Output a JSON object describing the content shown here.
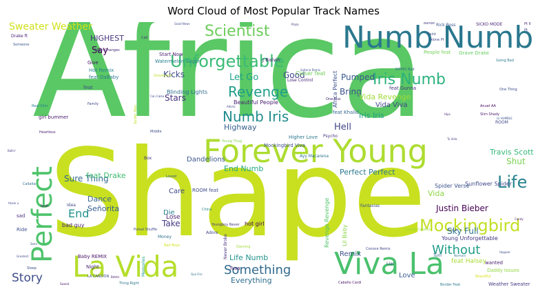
{
  "chart_data": {
    "type": "word_cloud",
    "title": "Word Cloud of Most Popular Track Names",
    "words": [
      {
        "text": "Africa",
        "size": 200,
        "color": "#5ac864"
      },
      {
        "text": "Shape",
        "size": 175,
        "color": "#c8e020"
      },
      {
        "text": "Forever Young",
        "size": 46,
        "color": "#addc30"
      },
      {
        "text": "Numb Numb",
        "size": 44,
        "color": "#2a788e"
      },
      {
        "text": "Viva La",
        "size": 44,
        "color": "#4ac16d"
      },
      {
        "text": "La Vida",
        "size": 42,
        "color": "#b5de2b"
      },
      {
        "text": "Perfect",
        "size": 40,
        "color": "#4ec36b"
      },
      {
        "text": "Unforgettable",
        "size": 24,
        "color": "#3bbb75"
      },
      {
        "text": "Mockingbird",
        "size": 24,
        "color": "#c2df23"
      },
      {
        "text": "Scientist",
        "size": 22,
        "color": "#6ccd5a"
      },
      {
        "text": "Iris Numb",
        "size": 22,
        "color": "#2db27d"
      },
      {
        "text": "Life",
        "size": 24,
        "color": "#26828e"
      },
      {
        "text": "Numb Iris",
        "size": 20,
        "color": "#228c8d"
      },
      {
        "text": "Revenge",
        "size": 20,
        "color": "#1f9e89"
      },
      {
        "text": "Something",
        "size": 18,
        "color": "#30698e"
      },
      {
        "text": "Without",
        "size": 18,
        "color": "#1f9e89"
      },
      {
        "text": "Story",
        "size": 17,
        "color": "#3e4c8a"
      },
      {
        "text": "End",
        "size": 16,
        "color": "#21918c"
      },
      {
        "text": "Sweater Weather",
        "size": 14,
        "color": "#d0e11c"
      },
      {
        "text": "Sure Thing",
        "size": 12,
        "color": "#31688e"
      },
      {
        "text": "Hell",
        "size": 13,
        "color": "#414487"
      },
      {
        "text": "Let Go",
        "size": 13,
        "color": "#1fa187"
      },
      {
        "text": "Good",
        "size": 12,
        "color": "#404688"
      },
      {
        "text": "Pumped",
        "size": 12,
        "color": "#38588c"
      },
      {
        "text": "Bring",
        "size": 12,
        "color": "#3b528b"
      },
      {
        "text": "Justin Bieber",
        "size": 12,
        "color": "#440154"
      },
      {
        "text": "Sky Full",
        "size": 12,
        "color": "#2c728e"
      },
      {
        "text": "Shut",
        "size": 12,
        "color": "#7ad151"
      },
      {
        "text": "Travis Scott",
        "size": 11,
        "color": "#35b779"
      },
      {
        "text": "Take",
        "size": 12,
        "color": "#443983"
      },
      {
        "text": "End Numb",
        "size": 11,
        "color": "#22a884"
      },
      {
        "text": "Perfect Perfect",
        "size": 11,
        "color": "#2a788e"
      },
      {
        "text": "Stars",
        "size": 12,
        "color": "#472d7b"
      },
      {
        "text": "Kicks",
        "size": 12,
        "color": "#3e4989"
      },
      {
        "text": "Say",
        "size": 13,
        "color": "#440154"
      },
      {
        "text": "HIGHEST",
        "size": 11,
        "color": "#46337e"
      },
      {
        "text": "Iris Iris",
        "size": 11,
        "color": "#1f9e89"
      },
      {
        "text": "Vida Revenge",
        "size": 11,
        "color": "#a0da39"
      },
      {
        "text": "Vida Viva",
        "size": 10,
        "color": "#404688"
      },
      {
        "text": "Dance",
        "size": 11,
        "color": "#33638d"
      },
      {
        "text": "Señorita",
        "size": 11,
        "color": "#365c8d"
      },
      {
        "text": "feat Drake",
        "size": 11,
        "color": "#3fbc73"
      },
      {
        "text": "Dandelions",
        "size": 10,
        "color": "#39568c"
      },
      {
        "text": "Highway",
        "size": 11,
        "color": "#355f8d"
      },
      {
        "text": "Everything",
        "size": 11,
        "color": "#2e6e8e"
      },
      {
        "text": "Life Numb",
        "size": 11,
        "color": "#20928c"
      },
      {
        "text": "Remix",
        "size": 10,
        "color": "#3b528b"
      },
      {
        "text": "Care",
        "size": 10,
        "color": "#3f4788"
      },
      {
        "text": "Die",
        "size": 10,
        "color": "#287d8e"
      },
      {
        "text": "Love",
        "size": 10,
        "color": "#375b8d"
      },
      {
        "text": "Lose",
        "size": 9,
        "color": "#481769"
      },
      {
        "text": "Beautiful People",
        "size": 8,
        "color": "#482071"
      },
      {
        "text": "Blinding Lights",
        "size": 8,
        "color": "#2f6c8e"
      },
      {
        "text": "Closer feat",
        "size": 8,
        "color": "#6ece58"
      },
      {
        "text": "feat Halsey",
        "size": 9,
        "color": "#a8db34"
      },
      {
        "text": "Spider Verse",
        "size": 8,
        "color": "#3b528b"
      },
      {
        "text": "Sunflower Spider",
        "size": 8,
        "color": "#3e4989"
      },
      {
        "text": "Young Unforgettable",
        "size": 8,
        "color": "#453781"
      },
      {
        "text": "Mockingbird Viva",
        "size": 7,
        "color": "#3d4e8a"
      },
      {
        "text": "Higher Love",
        "size": 7,
        "color": "#2a788e"
      },
      {
        "text": "Ayy Macarena",
        "size": 6,
        "color": "#2c728e"
      },
      {
        "text": "feat Khalid",
        "size": 7,
        "color": "#31688e"
      },
      {
        "text": "feat Gunna",
        "size": 7,
        "color": "#46327e"
      },
      {
        "text": "Start Now",
        "size": 7,
        "color": "#481c6e"
      },
      {
        "text": "Hot Remix",
        "size": 7,
        "color": "#25848e"
      },
      {
        "text": "feat DaBaby",
        "size": 7,
        "color": "#2a788e"
      },
      {
        "text": "Watermelon Sugar",
        "size": 7,
        "color": "#277f8e"
      },
      {
        "text": "Grave Drake",
        "size": 7,
        "color": "#63cb5f"
      },
      {
        "text": "People feat",
        "size": 7,
        "color": "#73d056"
      },
      {
        "text": "Daddy Issues",
        "size": 7,
        "color": "#93d741"
      },
      {
        "text": "Weather Sweater",
        "size": 7,
        "color": "#443a83"
      },
      {
        "text": "bad guy",
        "size": 8,
        "color": "#482576"
      },
      {
        "text": "hot girl",
        "size": 8,
        "color": "#440154"
      },
      {
        "text": "ROOM feat",
        "size": 7,
        "color": "#3e4a89"
      },
      {
        "text": "Lil Baby",
        "size": 8,
        "color": "#8bd646"
      },
      {
        "text": "Revenge Revenge",
        "size": 8,
        "color": "#52c569"
      },
      {
        "text": "Africa Perfect",
        "size": 8,
        "color": "#3b528b"
      },
      {
        "text": "Baby REMIX",
        "size": 7,
        "color": "#471063"
      },
      {
        "text": "Night",
        "size": 7,
        "color": "#482878"
      },
      {
        "text": "Tusa",
        "size": 7,
        "color": "#481a6c"
      },
      {
        "text": "girl bummer",
        "size": 7,
        "color": "#481b6d"
      },
      {
        "text": "Give",
        "size": 7,
        "color": "#471164"
      },
      {
        "text": "Ride",
        "size": 7,
        "color": "#3d4d8a"
      },
      {
        "text": "Drake ft",
        "size": 6,
        "color": "#482173"
      },
      {
        "text": "feat",
        "size": 7,
        "color": "#3f4889"
      },
      {
        "text": "J Balvin",
        "size": 7,
        "color": "#482374"
      },
      {
        "text": "Rick Ross",
        "size": 6,
        "color": "#3a548c"
      },
      {
        "text": "SICKO MODE",
        "size": 6,
        "color": "#482475"
      },
      {
        "text": "Money",
        "size": 6,
        "color": "#2d718e"
      },
      {
        "text": "Idea",
        "size": 6,
        "color": "#3e4a89"
      },
      {
        "text": "sad",
        "size": 7,
        "color": "#46307e"
      },
      {
        "text": "Liar",
        "size": 6,
        "color": "#3c508b"
      },
      {
        "text": "Turn",
        "size": 6,
        "color": "#355e8d"
      },
      {
        "text": "Psycho",
        "size": 6,
        "color": "#46337f"
      },
      {
        "text": "Adore",
        "size": 6,
        "color": "#3f4889"
      },
      {
        "text": "Fantasias",
        "size": 6,
        "color": "#3b518b"
      },
      {
        "text": "Vida",
        "size": 11,
        "color": "#8fd744"
      },
      {
        "text": "Lose Control",
        "size": 6,
        "color": "#482979"
      },
      {
        "text": "ROOM",
        "size": 6,
        "color": "#3f4788"
      },
      {
        "text": "Anuel AA",
        "size": 5,
        "color": "#46085c"
      },
      {
        "text": "Slim Shady",
        "size": 5,
        "color": "#481467"
      },
      {
        "text": "One Kiss",
        "size": 5,
        "color": "#482575"
      },
      {
        "text": "RITMO Bad",
        "size": 5,
        "color": "#31688e"
      },
      {
        "text": "Real Slim",
        "size": 5,
        "color": "#287c8e"
      },
      {
        "text": "Family",
        "size": 5,
        "color": "#3e4989"
      },
      {
        "text": "Loved",
        "size": 5,
        "color": "#375a8c"
      },
      {
        "text": "Box",
        "size": 6,
        "color": "#46337e"
      },
      {
        "text": "Heartless",
        "size": 5,
        "color": "#481f70"
      },
      {
        "text": "Middle",
        "size": 5,
        "color": "#3d4d8a"
      },
      {
        "text": "Callaita",
        "size": 5,
        "color": "#2f6b8e"
      },
      {
        "text": "Bad Boys",
        "size": 5,
        "color": "#d2e21b"
      },
      {
        "text": "Memories",
        "size": 6,
        "color": "#20a386"
      },
      {
        "text": "Never Broke",
        "size": 6,
        "color": "#46307e"
      },
      {
        "text": "Conoce Remix",
        "size": 5,
        "color": "#404688"
      },
      {
        "text": "Camila Cabello",
        "size": 5,
        "color": "#9bd93c"
      },
      {
        "text": "Cabello Cardi",
        "size": 5,
        "color": "#48186a"
      },
      {
        "text": "Border Feat",
        "size": 5,
        "color": "#2a788e"
      },
      {
        "text": "Thing Right",
        "size": 5,
        "color": "#2c738e"
      },
      {
        "text": "LA CANCIÓN",
        "size": 5,
        "color": "#3e4989"
      },
      {
        "text": "Spider Man",
        "size": 5,
        "color": "#c0df25"
      },
      {
        "text": "Night Changes",
        "size": 5,
        "color": "#482878"
      },
      {
        "text": "Faint",
        "size": 5,
        "color": "#3e4c8a"
      },
      {
        "text": "Alone Pt",
        "size": 5,
        "color": "#3f4788"
      },
      {
        "text": "Graveyard",
        "size": 5,
        "color": "#bade28"
      },
      {
        "text": "Going Bad",
        "size": 5,
        "color": "#2a788e"
      },
      {
        "text": "Call",
        "size": 5,
        "color": "#472f7d"
      },
      {
        "text": "Pt II",
        "size": 5,
        "color": "#482677"
      },
      {
        "text": "Someone",
        "size": 5,
        "color": "#38598c"
      },
      {
        "text": "Pt",
        "size": 5,
        "color": "#433e85"
      },
      {
        "text": "wanted",
        "size": 7,
        "color": "#481c6e"
      },
      {
        "text": "One Thing",
        "size": 5,
        "color": "#3e4c8a"
      },
      {
        "text": "Lil HUMBLE",
        "size": 4,
        "color": "#3b528b"
      },
      {
        "text": "Young Thug",
        "size": 5,
        "color": "#7fd34e"
      },
      {
        "text": "Hips",
        "size": 4,
        "color": "#482576"
      },
      {
        "text": "Candy",
        "size": 4,
        "color": "#481668"
      },
      {
        "text": "Sleep",
        "size": 5,
        "color": "#3d4e8a"
      },
      {
        "text": "Youngboy Never",
        "size": 5,
        "color": "#46337f"
      },
      {
        "text": "Putsal Shuffle",
        "size": 5,
        "color": "#3f4889"
      },
      {
        "text": "Dancing",
        "size": 5,
        "color": "#a2da37"
      },
      {
        "text": "Can Calea",
        "size": 4,
        "color": "#3e4989"
      },
      {
        "text": "Adicto",
        "size": 4,
        "color": "#404588"
      },
      {
        "text": "Solteria Remix",
        "size": 4,
        "color": "#3a548c"
      },
      {
        "text": "Beautiful",
        "size": 5,
        "color": "#d8e219"
      },
      {
        "text": "Bandit",
        "size": 5,
        "color": "#433e85"
      },
      {
        "text": "Tu Vida",
        "size": 4,
        "color": "#443983"
      },
      {
        "text": "Que Fire",
        "size": 4,
        "color": "#2c728e"
      },
      {
        "text": "Greatest",
        "size": 4,
        "color": "#3e4989"
      },
      {
        "text": "Ballin'",
        "size": 4,
        "color": "#433e85"
      },
      {
        "text": "Better",
        "size": 4,
        "color": "#482173"
      },
      {
        "text": "Normani",
        "size": 4,
        "color": "#287c8e"
      },
      {
        "text": "Happier",
        "size": 4,
        "color": "#3e4a89"
      },
      {
        "text": "Cardi B",
        "size": 4,
        "color": "#3b518b"
      },
      {
        "text": "thank u",
        "size": 4,
        "color": "#3f4788"
      },
      {
        "text": "South",
        "size": 4,
        "color": "#440154"
      },
      {
        "text": "Seen",
        "size": 4,
        "color": "#3d4e8a"
      },
      {
        "text": "Swaed",
        "size": 4,
        "color": "#482374"
      },
      {
        "text": "China",
        "size": 5,
        "color": "#25838e"
      },
      {
        "text": "Plaza",
        "size": 4,
        "color": "#472f7d"
      },
      {
        "text": "Good News",
        "size": 4,
        "color": "#3f4889"
      }
    ]
  }
}
